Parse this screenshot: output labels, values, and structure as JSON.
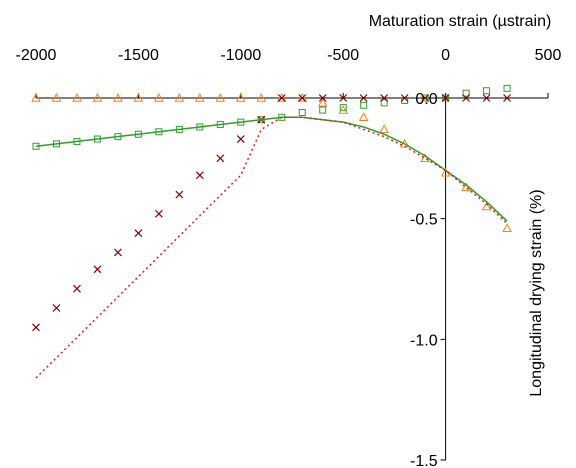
{
  "chart_data": {
    "type": "scatter",
    "xlabel": "Maturation strain (µstrain)",
    "ylabel": "Longitudinal drying strain (%)",
    "xlim": [
      -2000,
      500
    ],
    "ylim": [
      -1.5,
      0
    ],
    "x_ticks": [
      -2000,
      -1500,
      -1000,
      -500,
      0,
      500
    ],
    "y_ticks": [
      0,
      -0.5,
      -1.0,
      -1.5
    ],
    "x_tick_labels": [
      "-2000",
      "-1500",
      "-1000",
      "-500",
      "0",
      "500"
    ],
    "y_tick_labels": [
      "0.0",
      "-0.5",
      "-1.0",
      "-1.5"
    ],
    "x_axis_position": "top",
    "y_axis_position": "right",
    "grid": false,
    "legend": "none",
    "series": [
      {
        "marker": "triangle",
        "color": "#ff7f0e",
        "x": [
          -2000,
          -1900,
          -1800,
          -1700,
          -1600,
          -1500,
          -1400,
          -1300,
          -1200,
          -1100,
          -1000,
          -900,
          -800,
          -700,
          -600,
          -500,
          -400,
          -300,
          -200,
          -100,
          0,
          100,
          200,
          300
        ],
        "y": [
          0,
          0,
          0,
          0,
          0,
          0,
          0,
          0,
          0,
          0,
          0,
          0,
          0,
          0,
          -0.02,
          -0.05,
          -0.08,
          -0.13,
          -0.19,
          -0.25,
          -0.31,
          -0.37,
          -0.45,
          -0.54
        ]
      },
      {
        "marker": "square",
        "color": "#2ca02c",
        "x": [
          -2000,
          -1900,
          -1800,
          -1700,
          -1600,
          -1500,
          -1400,
          -1300,
          -1200,
          -1100,
          -1000,
          -900,
          -800,
          -700,
          -600,
          -500,
          -400,
          -300,
          -200,
          -100,
          0,
          100,
          200,
          300
        ],
        "y": [
          -0.2,
          -0.19,
          -0.18,
          -0.17,
          -0.16,
          -0.15,
          -0.14,
          -0.13,
          -0.12,
          -0.11,
          -0.1,
          -0.09,
          -0.08,
          -0.06,
          -0.05,
          -0.04,
          -0.03,
          -0.02,
          -0.01,
          0,
          0,
          0.02,
          0.03,
          0.04
        ]
      },
      {
        "marker": "x",
        "color": "#8b0000",
        "x": [
          -2000,
          -1900,
          -1800,
          -1700,
          -1600,
          -1500,
          -1400,
          -1300,
          -1200,
          -1100,
          -1000,
          -900,
          -800,
          -700,
          -600,
          -500,
          -400,
          -300,
          -200,
          -100,
          0,
          100,
          200,
          300
        ],
        "y": [
          -0.95,
          -0.87,
          -0.79,
          -0.71,
          -0.64,
          -0.56,
          -0.48,
          -0.4,
          -0.32,
          -0.25,
          -0.17,
          -0.09,
          0,
          0,
          0,
          0,
          0,
          0,
          0,
          0,
          0,
          0,
          0,
          0
        ]
      },
      {
        "style": "solid-line",
        "color": "#2ca02c",
        "x": [
          -2000,
          -1900,
          -1800,
          -1700,
          -1600,
          -1500,
          -1400,
          -1300,
          -1200,
          -1100,
          -1000,
          -900,
          -800,
          -700,
          -600,
          -500,
          -400,
          -300,
          -200,
          -100,
          0,
          100,
          200,
          300
        ],
        "y": [
          -0.2,
          -0.19,
          -0.18,
          -0.17,
          -0.16,
          -0.15,
          -0.14,
          -0.13,
          -0.12,
          -0.11,
          -0.1,
          -0.09,
          -0.08,
          -0.08,
          -0.09,
          -0.1,
          -0.12,
          -0.15,
          -0.19,
          -0.24,
          -0.3,
          -0.36,
          -0.43,
          -0.51
        ]
      },
      {
        "style": "dotted-line",
        "color": "#e41a1c",
        "x": [
          -2000,
          -1500,
          -1000,
          -900,
          -800,
          -700,
          -600,
          -500,
          -400,
          -300,
          -200,
          -100,
          0,
          100,
          200,
          300
        ],
        "y": [
          -1.16,
          -0.74,
          -0.32,
          -0.13,
          -0.08,
          -0.08,
          -0.09,
          -0.1,
          -0.13,
          -0.16,
          -0.2,
          -0.25,
          -0.3,
          -0.37,
          -0.44,
          -0.52
        ]
      }
    ]
  }
}
